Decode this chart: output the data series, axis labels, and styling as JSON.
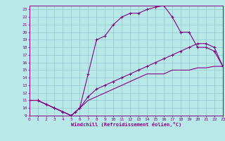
{
  "xlabel": "Windchill (Refroidissement éolien,°C)",
  "xlim": [
    0,
    23
  ],
  "ylim": [
    9,
    23.5
  ],
  "xticks": [
    0,
    1,
    2,
    3,
    4,
    5,
    6,
    7,
    8,
    9,
    10,
    11,
    12,
    13,
    14,
    15,
    16,
    17,
    18,
    19,
    20,
    21,
    22,
    23
  ],
  "yticks": [
    9,
    10,
    11,
    12,
    13,
    14,
    15,
    16,
    17,
    18,
    19,
    20,
    21,
    22,
    23
  ],
  "bg_color": "#b8e8e8",
  "grid_color": "#90c8d0",
  "line_color": "#880088",
  "curve1_x": [
    0,
    1,
    2,
    3,
    4,
    5,
    5.5,
    6,
    7,
    8,
    9,
    10,
    11,
    12,
    13,
    14,
    15,
    16,
    17,
    18,
    19,
    20,
    21,
    22,
    23
  ],
  "curve1_y": [
    11,
    11,
    10.5,
    10,
    9.5,
    9,
    9.5,
    10,
    14.5,
    19,
    19.5,
    21,
    22,
    22.5,
    22.5,
    23,
    23.3,
    23.5,
    22,
    20,
    20,
    18,
    18,
    17.5,
    15.5
  ],
  "curve2_x": [
    0,
    1,
    2,
    3,
    4,
    5,
    6,
    7,
    8,
    9,
    10,
    11,
    12,
    13,
    14,
    15,
    16,
    17,
    18,
    19,
    20,
    21,
    22,
    23
  ],
  "curve2_y": [
    11,
    11,
    10.5,
    10,
    9.5,
    9,
    10,
    11.5,
    12.5,
    13,
    13.5,
    14,
    14.5,
    15,
    15.5,
    16,
    16.5,
    17,
    17.5,
    18,
    18.5,
    18.5,
    18,
    15.5
  ],
  "curve3_x": [
    0,
    1,
    2,
    3,
    4,
    5,
    6,
    7,
    8,
    9,
    10,
    11,
    12,
    13,
    14,
    15,
    16,
    17,
    18,
    19,
    20,
    21,
    22,
    23
  ],
  "curve3_y": [
    11,
    11,
    10.5,
    10,
    9.5,
    9,
    10,
    11,
    11.5,
    12,
    12.5,
    13,
    13.5,
    14,
    14.5,
    14.5,
    14.5,
    15,
    15,
    15,
    15.3,
    15.3,
    15.5,
    15.5
  ]
}
